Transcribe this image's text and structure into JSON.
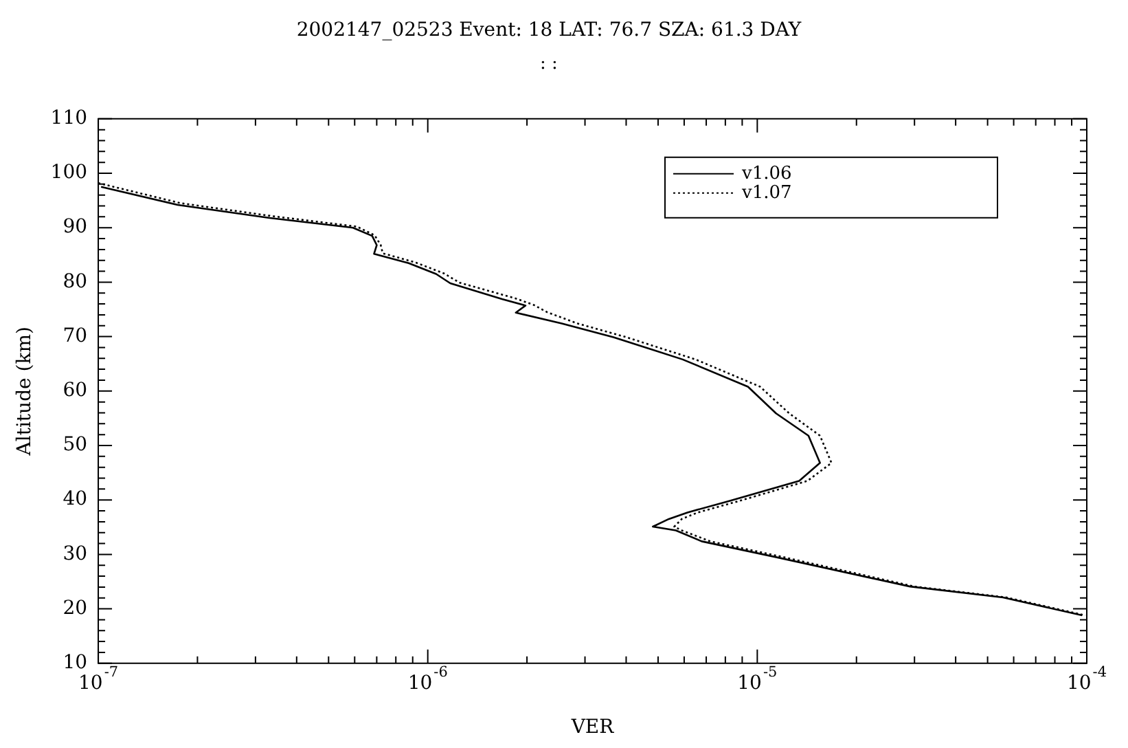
{
  "chart_data": {
    "type": "line",
    "title": "2002147_02523 Event: 18 LAT: 76.7 SZA: 61.3 DAY",
    "subtitle": ": :",
    "xlabel": "VER",
    "ylabel": "Altitude (km)",
    "log": "x",
    "grid": false,
    "legend": "top right",
    "marker": "none",
    "xlim": [
      1e-07,
      0.0001
    ],
    "xticks": [
      {
        "value": 1e-07,
        "label": "10$^{-7}$"
      },
      {
        "value": 2e-07,
        "label": null
      },
      {
        "value": 3e-07,
        "label": null
      },
      {
        "value": 4e-07,
        "label": null
      },
      {
        "value": 5e-07,
        "label": null
      },
      {
        "value": 6e-07,
        "label": null
      },
      {
        "value": 7e-07,
        "label": null
      },
      {
        "value": 8e-07,
        "label": null
      },
      {
        "value": 9e-07,
        "label": null
      },
      {
        "value": 1e-06,
        "label": "10$^{-6}$"
      },
      {
        "value": 2e-06,
        "label": null
      },
      {
        "value": 3e-06,
        "label": null
      },
      {
        "value": 4e-06,
        "label": null
      },
      {
        "value": 5e-06,
        "label": null
      },
      {
        "value": 6e-06,
        "label": null
      },
      {
        "value": 7e-06,
        "label": null
      },
      {
        "value": 8e-06,
        "label": null
      },
      {
        "value": 9e-06,
        "label": null
      },
      {
        "value": 1e-05,
        "label": "10$^{-5}$"
      },
      {
        "value": 2e-05,
        "label": null
      },
      {
        "value": 3e-05,
        "label": null
      },
      {
        "value": 4e-05,
        "label": null
      },
      {
        "value": 5e-05,
        "label": null
      },
      {
        "value": 6e-05,
        "label": null
      },
      {
        "value": 7e-05,
        "label": null
      },
      {
        "value": 8e-05,
        "label": null
      },
      {
        "value": 9e-05,
        "label": null
      },
      {
        "value": 0.0001,
        "label": "10$^{-4}$"
      }
    ],
    "ylim": [
      10,
      110
    ],
    "yticks": [
      10,
      {
        "value": 12,
        "label": null
      },
      {
        "value": 14,
        "label": null
      },
      {
        "value": 16,
        "label": null
      },
      {
        "value": 18,
        "label": null
      },
      20,
      {
        "value": 22,
        "label": null
      },
      {
        "value": 24,
        "label": null
      },
      {
        "value": 26,
        "label": null
      },
      {
        "value": 28,
        "label": null
      },
      30,
      {
        "value": 32,
        "label": null
      },
      {
        "value": 34,
        "label": null
      },
      {
        "value": 36,
        "label": null
      },
      {
        "value": 38,
        "label": null
      },
      40,
      {
        "value": 42,
        "label": null
      },
      {
        "value": 44,
        "label": null
      },
      {
        "value": 46,
        "label": null
      },
      {
        "value": 48,
        "label": null
      },
      50,
      {
        "value": 52,
        "label": null
      },
      {
        "value": 54,
        "label": null
      },
      {
        "value": 56,
        "label": null
      },
      {
        "value": 58,
        "label": null
      },
      60,
      {
        "value": 62,
        "label": null
      },
      {
        "value": 64,
        "label": null
      },
      {
        "value": 66,
        "label": null
      },
      {
        "value": 68,
        "label": null
      },
      70,
      {
        "value": 72,
        "label": null
      },
      {
        "value": 74,
        "label": null
      },
      {
        "value": 76,
        "label": null
      },
      {
        "value": 78,
        "label": null
      },
      80,
      {
        "value": 82,
        "label": null
      },
      {
        "value": 84,
        "label": null
      },
      {
        "value": 86,
        "label": null
      },
      {
        "value": 88,
        "label": null
      },
      90,
      {
        "value": 92,
        "label": null
      },
      {
        "value": 94,
        "label": null
      },
      {
        "value": 96,
        "label": null
      },
      {
        "value": 98,
        "label": null
      },
      100,
      {
        "value": 102,
        "label": null
      },
      {
        "value": 104,
        "label": null
      },
      {
        "value": 106,
        "label": null
      },
      {
        "value": 108,
        "label": null
      },
      110
    ],
    "series": [
      {
        "name": "v1.06",
        "color": "#000000",
        "line_style": "solid",
        "x": [
          1.02e-07,
          1.74e-07,
          3.31e-07,
          5.93e-07,
          6.78e-07,
          7e-07,
          6.87e-07,
          8.75e-07,
          1.06e-06,
          1.17e-06,
          1.68e-06,
          1.98e-06,
          1.85e-06,
          2.55e-06,
          3.66e-06,
          5.94e-06,
          9.37e-06,
          1.14e-05,
          1.43e-05,
          1.55e-05,
          1.34e-05,
          8.22e-06,
          6.14e-06,
          5.39e-06,
          4.82e-06,
          5.66e-06,
          6.78e-06,
          1.14e-05,
          2.91e-05,
          5.57e-05,
          9.68e-05
        ],
        "values": [
          97.5,
          94.2,
          91.8,
          90.0,
          88.5,
          86.8,
          85.2,
          83.5,
          81.5,
          79.8,
          76.9,
          75.7,
          74.4,
          72.4,
          69.9,
          65.8,
          60.8,
          55.9,
          51.8,
          46.8,
          43.5,
          39.8,
          37.7,
          36.5,
          35.1,
          34.4,
          32.4,
          29.5,
          24.1,
          22.1,
          18.8
        ]
      },
      {
        "name": "v1.07",
        "color": "#000000",
        "line_style": "dotted",
        "x": [
          1e-07,
          1.78e-07,
          3.4e-07,
          6.1e-07,
          6.9e-07,
          7.2e-07,
          7.3e-07,
          9.2e-07,
          1.12e-06,
          1.25e-06,
          1.85e-06,
          2.1e-06,
          2.3e-06,
          2.85e-06,
          4e-06,
          6.5e-06,
          1.02e-05,
          1.25e-05,
          1.55e-05,
          1.68e-05,
          1.42e-05,
          8.8e-06,
          6.6e-06,
          5.9e-06,
          5.6e-06,
          5.9e-06,
          7.2e-06,
          1.2e-05,
          3e-05,
          5.7e-05,
          9.9e-05
        ],
        "values": [
          98.2,
          94.5,
          92.1,
          90.2,
          88.6,
          86.8,
          85.3,
          83.6,
          81.6,
          79.9,
          77.0,
          75.8,
          74.5,
          72.4,
          69.9,
          65.8,
          60.8,
          55.9,
          51.8,
          46.8,
          43.5,
          39.8,
          37.7,
          36.5,
          35.1,
          34.4,
          32.4,
          29.5,
          24.1,
          22.1,
          18.8
        ]
      }
    ]
  }
}
